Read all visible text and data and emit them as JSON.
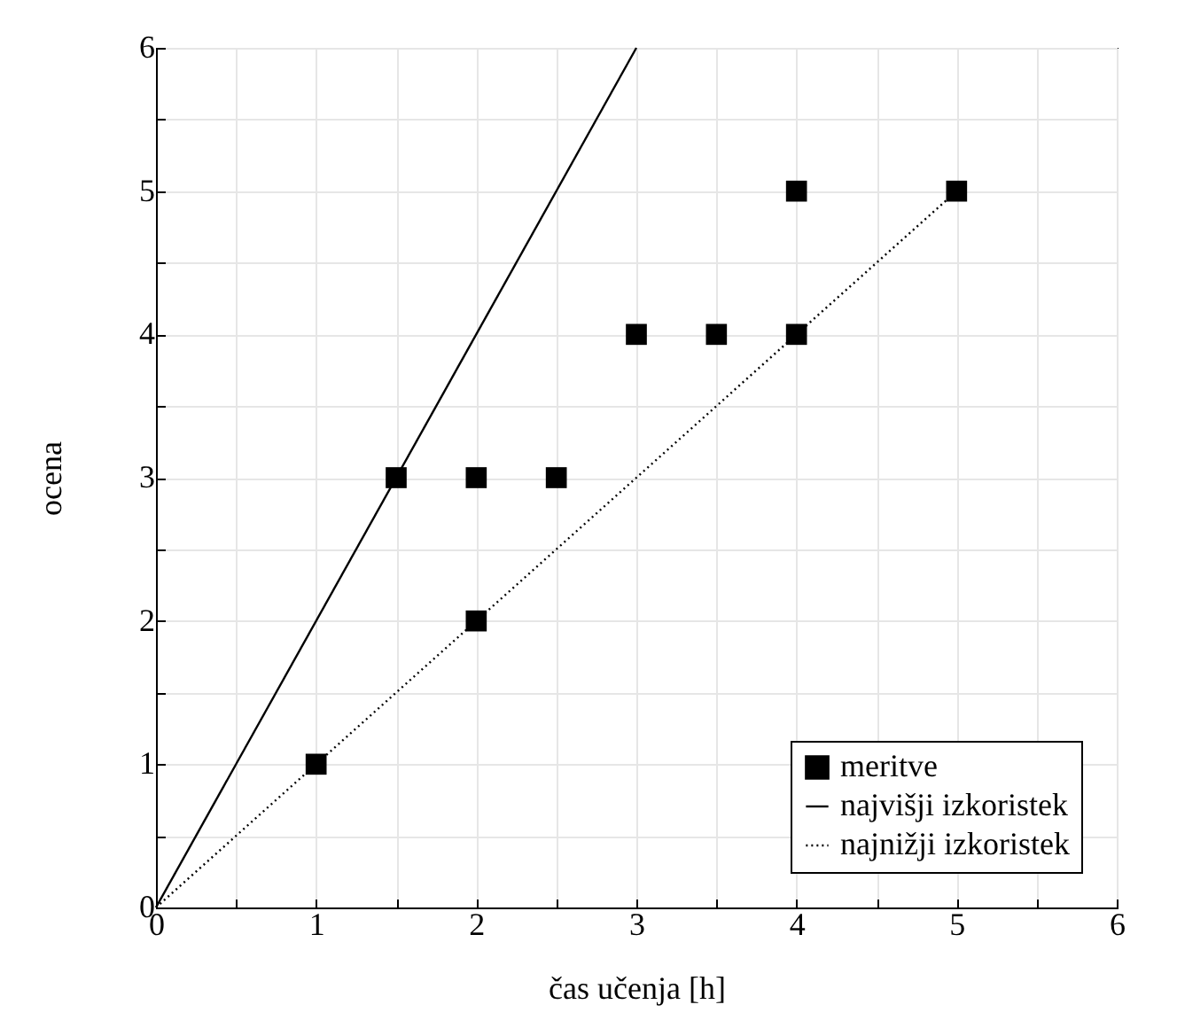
{
  "chart_data": {
    "type": "scatter",
    "xlabel": "čas učenja [h]",
    "ylabel": "ocena",
    "xlim": [
      0,
      6
    ],
    "ylim": [
      0,
      6
    ],
    "xticks": [
      0,
      {
        "value": 0.5,
        "label": null
      },
      1,
      {
        "value": 1.5,
        "label": null
      },
      2,
      {
        "value": 2.5,
        "label": null
      },
      3,
      {
        "value": 3.5,
        "label": null
      },
      4,
      {
        "value": 4.5,
        "label": null
      },
      5,
      {
        "value": 5.5,
        "label": null
      },
      6
    ],
    "yticks": [
      0,
      {
        "value": 0.5,
        "label": null
      },
      1,
      {
        "value": 1.5,
        "label": null
      },
      2,
      {
        "value": 2.5,
        "label": null
      },
      3,
      {
        "value": 3.5,
        "label": null
      },
      4,
      {
        "value": 4.5,
        "label": null
      },
      5,
      {
        "value": 5.5,
        "label": null
      },
      6
    ],
    "grid": true,
    "legend": "bottom right",
    "series": [
      {
        "name": "meritve",
        "type": "scatter",
        "marker": "square",
        "color": "#000000",
        "x": [
          1,
          1.5,
          2,
          2,
          2.5,
          3,
          3.5,
          4,
          4,
          5
        ],
        "values": [
          1,
          3,
          3,
          2,
          3,
          4,
          4,
          4,
          5,
          5
        ]
      },
      {
        "name": "najvišji izkoristek",
        "type": "line",
        "line_style": "solid",
        "marker": "none",
        "color": "#000000",
        "x": [
          0,
          3
        ],
        "values": [
          0,
          6
        ]
      },
      {
        "name": "najnižji izkoristek",
        "type": "line",
        "line_style": "dotted",
        "marker": "none",
        "color": "#000000",
        "x": [
          0,
          5
        ],
        "values": [
          0,
          5
        ]
      }
    ]
  }
}
